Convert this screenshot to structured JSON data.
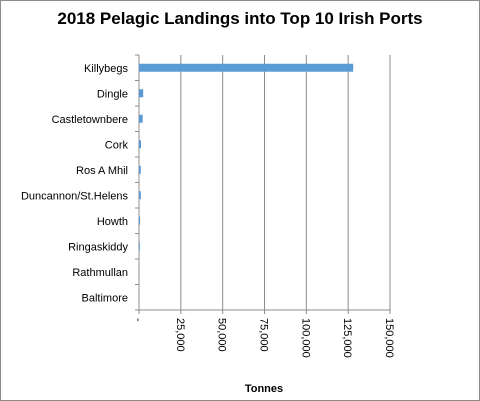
{
  "chart_data": {
    "type": "bar",
    "orientation": "horizontal",
    "title": "2018 Pelagic Landings into Top 10 Irish Ports",
    "xlabel": "Tonnes",
    "ylabel": "",
    "categories": [
      "Killybegs",
      "Dingle",
      "Castletownbere",
      "Cork",
      "Ros A Mhil",
      "Duncannon/St.Helens",
      "Howth",
      "Ringaskiddy",
      "Rathmullan",
      "Baltimore"
    ],
    "values": [
      128000,
      2500,
      2200,
      1200,
      1100,
      1100,
      600,
      500,
      150,
      100
    ],
    "xlim": [
      0,
      150000
    ],
    "ticks": [
      0,
      25000,
      50000,
      75000,
      100000,
      125000,
      150000
    ],
    "tick_labels": [
      "-",
      "25,000",
      "50,000",
      "75,000",
      "100,000",
      "125,000",
      "150,000"
    ],
    "grid": true,
    "bar_color": "#5b9bd5"
  }
}
